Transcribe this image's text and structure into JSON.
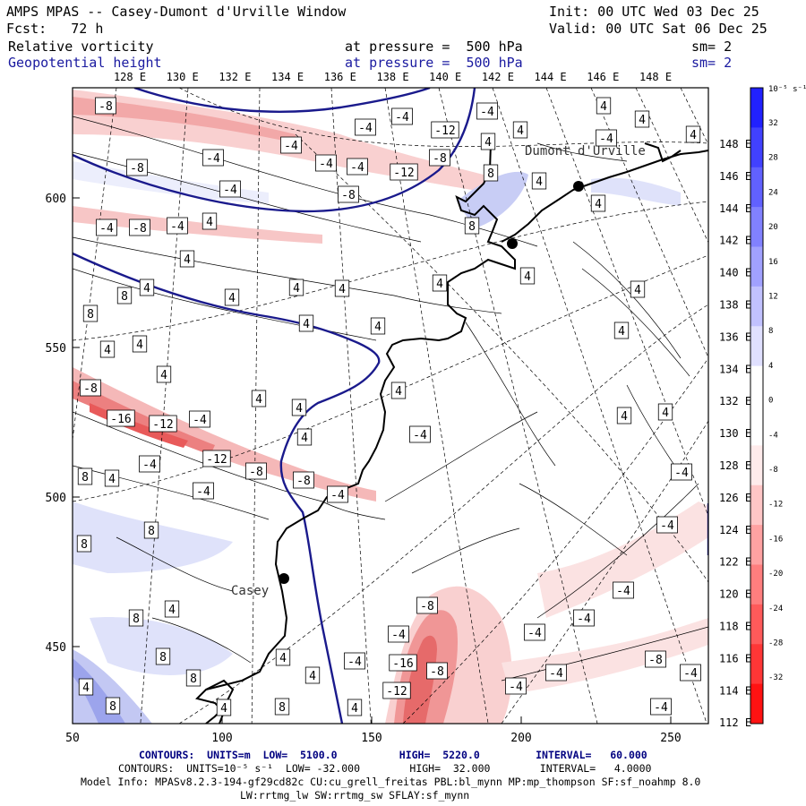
{
  "header": {
    "title": "AMPS MPAS -- Casey-Dumont d'Urville Window",
    "init": "Init: 00 UTC Wed 03 Dec 25",
    "fcst": "Fcst:   72 h",
    "valid": "Valid: 00 UTC Sat 06 Dec 25",
    "field1": "Relative vorticity",
    "field1_level": "at pressure =  500 hPa",
    "field1_sm": "sm= 2",
    "field2": "Geopotential height",
    "field2_level": "at pressure =  500 hPa",
    "field2_sm": "sm= 2"
  },
  "colors": {
    "height": "#1a1a8c",
    "pos_max": "#0000ff",
    "neg_max": "#ff0000",
    "coast": "#000000"
  },
  "top_lon_labels": [
    "128 E",
    "130 E",
    "132 E",
    "134 E",
    "136 E",
    "138 E",
    "140 E",
    "142 E",
    "144 E",
    "146 E",
    "148 E"
  ],
  "right_lon_labels": [
    "148 E",
    "146 E",
    "144 E",
    "142 E",
    "140 E",
    "138 E",
    "136 E",
    "134 E",
    "132 E",
    "130 E",
    "128 E",
    "126 E",
    "124 E",
    "122 E",
    "120 E",
    "118 E",
    "116 E",
    "114 E",
    "112 E"
  ],
  "x_ticks": [
    "50",
    "100",
    "150",
    "200",
    "250"
  ],
  "y_ticks": [
    "600",
    "550",
    "500",
    "450"
  ],
  "colorbar": {
    "unit": "10⁻⁵ s⁻¹",
    "labels": [
      "32",
      "28",
      "24",
      "20",
      "16",
      "12",
      "8",
      "4",
      "0",
      "-4",
      "-8",
      "-12",
      "-16",
      "-20",
      "-24",
      "-28",
      "-32"
    ]
  },
  "places": {
    "dumont": "Dumont d'Urville",
    "casey": "Casey"
  },
  "contour_labels": [
    {
      "t": "-8",
      "x": 118,
      "y": 118
    },
    {
      "t": "-4",
      "x": 238,
      "y": 176
    },
    {
      "t": "-4",
      "x": 257,
      "y": 211
    },
    {
      "t": "-4",
      "x": 325,
      "y": 162
    },
    {
      "t": "-4",
      "x": 364,
      "y": 182
    },
    {
      "t": "-4",
      "x": 399,
      "y": 186
    },
    {
      "t": "-4",
      "x": 408,
      "y": 142
    },
    {
      "t": "-4",
      "x": 449,
      "y": 130
    },
    {
      "t": "-12",
      "x": 497,
      "y": 145
    },
    {
      "t": "-12",
      "x": 451,
      "y": 192
    },
    {
      "t": "-8",
      "x": 491,
      "y": 176
    },
    {
      "t": "-8",
      "x": 389,
      "y": 217
    },
    {
      "t": "-4",
      "x": 544,
      "y": 124
    },
    {
      "t": "4",
      "x": 545,
      "y": 158
    },
    {
      "t": "4",
      "x": 581,
      "y": 145
    },
    {
      "t": "8",
      "x": 548,
      "y": 193
    },
    {
      "t": "4",
      "x": 602,
      "y": 202
    },
    {
      "t": "4",
      "x": 674,
      "y": 118
    },
    {
      "t": "4",
      "x": 717,
      "y": 133
    },
    {
      "t": "-4",
      "x": 677,
      "y": 154
    },
    {
      "t": "4",
      "x": 774,
      "y": 150
    },
    {
      "t": "4",
      "x": 668,
      "y": 227
    },
    {
      "t": "8",
      "x": 527,
      "y": 252
    },
    {
      "t": "-8",
      "x": 153,
      "y": 187
    },
    {
      "t": "-4",
      "x": 119,
      "y": 254
    },
    {
      "t": "-8",
      "x": 156,
      "y": 254
    },
    {
      "t": "-4",
      "x": 198,
      "y": 252
    },
    {
      "t": "4",
      "x": 234,
      "y": 247
    },
    {
      "t": "4",
      "x": 209,
      "y": 289
    },
    {
      "t": "4",
      "x": 164,
      "y": 321
    },
    {
      "t": "8",
      "x": 139,
      "y": 330
    },
    {
      "t": "8",
      "x": 101,
      "y": 350
    },
    {
      "t": "4",
      "x": 259,
      "y": 332
    },
    {
      "t": "4",
      "x": 331,
      "y": 321
    },
    {
      "t": "4",
      "x": 382,
      "y": 322
    },
    {
      "t": "4",
      "x": 342,
      "y": 361
    },
    {
      "t": "4",
      "x": 422,
      "y": 364
    },
    {
      "t": "4",
      "x": 491,
      "y": 316
    },
    {
      "t": "4",
      "x": 589,
      "y": 308
    },
    {
      "t": "4",
      "x": 712,
      "y": 323
    },
    {
      "t": "4",
      "x": 694,
      "y": 369
    },
    {
      "t": "4",
      "x": 120,
      "y": 390
    },
    {
      "t": "4",
      "x": 156,
      "y": 384
    },
    {
      "t": "4",
      "x": 183,
      "y": 418
    },
    {
      "t": "-8",
      "x": 101,
      "y": 433
    },
    {
      "t": "-16",
      "x": 135,
      "y": 467
    },
    {
      "t": "-12",
      "x": 182,
      "y": 473
    },
    {
      "t": "-4",
      "x": 223,
      "y": 468
    },
    {
      "t": "4",
      "x": 289,
      "y": 445
    },
    {
      "t": "4",
      "x": 334,
      "y": 455
    },
    {
      "t": "4",
      "x": 445,
      "y": 436
    },
    {
      "t": "-4",
      "x": 469,
      "y": 485
    },
    {
      "t": "4",
      "x": 340,
      "y": 488
    },
    {
      "t": "4",
      "x": 697,
      "y": 464
    },
    {
      "t": "4",
      "x": 743,
      "y": 460
    },
    {
      "t": "-12",
      "x": 242,
      "y": 512
    },
    {
      "t": "-8",
      "x": 286,
      "y": 526
    },
    {
      "t": "-4",
      "x": 167,
      "y": 518
    },
    {
      "t": "-8",
      "x": 339,
      "y": 536
    },
    {
      "t": "-4",
      "x": 377,
      "y": 552
    },
    {
      "t": "-4",
      "x": 227,
      "y": 548
    },
    {
      "t": "8",
      "x": 95,
      "y": 532
    },
    {
      "t": "4",
      "x": 125,
      "y": 534
    },
    {
      "t": "-4",
      "x": 761,
      "y": 527
    },
    {
      "t": "-4",
      "x": 745,
      "y": 586
    },
    {
      "t": "8",
      "x": 169,
      "y": 592
    },
    {
      "t": "8",
      "x": 94,
      "y": 607
    },
    {
      "t": "4",
      "x": 192,
      "y": 680
    },
    {
      "t": "8",
      "x": 152,
      "y": 690
    },
    {
      "t": "-4",
      "x": 696,
      "y": 659
    },
    {
      "t": "-8",
      "x": 477,
      "y": 676
    },
    {
      "t": "-4",
      "x": 652,
      "y": 690
    },
    {
      "t": "-4",
      "x": 445,
      "y": 708
    },
    {
      "t": "-4",
      "x": 597,
      "y": 706
    },
    {
      "t": "-4",
      "x": 396,
      "y": 738
    },
    {
      "t": "-16",
      "x": 450,
      "y": 740
    },
    {
      "t": "-8",
      "x": 488,
      "y": 749
    },
    {
      "t": "-4",
      "x": 621,
      "y": 751
    },
    {
      "t": "-8",
      "x": 732,
      "y": 736
    },
    {
      "t": "-4",
      "x": 771,
      "y": 751
    },
    {
      "t": "4",
      "x": 316,
      "y": 734
    },
    {
      "t": "4",
      "x": 349,
      "y": 754
    },
    {
      "t": "8",
      "x": 182,
      "y": 733
    },
    {
      "t": "8",
      "x": 216,
      "y": 757
    },
    {
      "t": "4",
      "x": 96,
      "y": 767
    },
    {
      "t": "-12",
      "x": 443,
      "y": 771
    },
    {
      "t": "-4",
      "x": 576,
      "y": 766
    },
    {
      "t": "8",
      "x": 126,
      "y": 788
    },
    {
      "t": "8",
      "x": 315,
      "y": 789
    },
    {
      "t": "4",
      "x": 396,
      "y": 790
    },
    {
      "t": "4",
      "x": 250,
      "y": 790
    },
    {
      "t": "-4",
      "x": 738,
      "y": 789
    }
  ],
  "footer": {
    "line1": "CONTOURS:  UNITS=m  LOW=  5100.0          HIGH=  5220.0         INTERVAL=   60.000",
    "line2": "CONTOURS:  UNITS=10⁻⁵ s⁻¹  LOW= -32.000        HIGH=  32.000        INTERVAL=   4.0000",
    "line3": "Model Info: MPASv8.2.3-194-gf29cd82c CU:cu_grell_freitas PBL:bl_mynn MP:mp_thompson SF:sf_noahmp 8.0",
    "line4": "LW:rrtmg_lw SW:rrtmg_sw SFLAY:sf_mynn"
  }
}
